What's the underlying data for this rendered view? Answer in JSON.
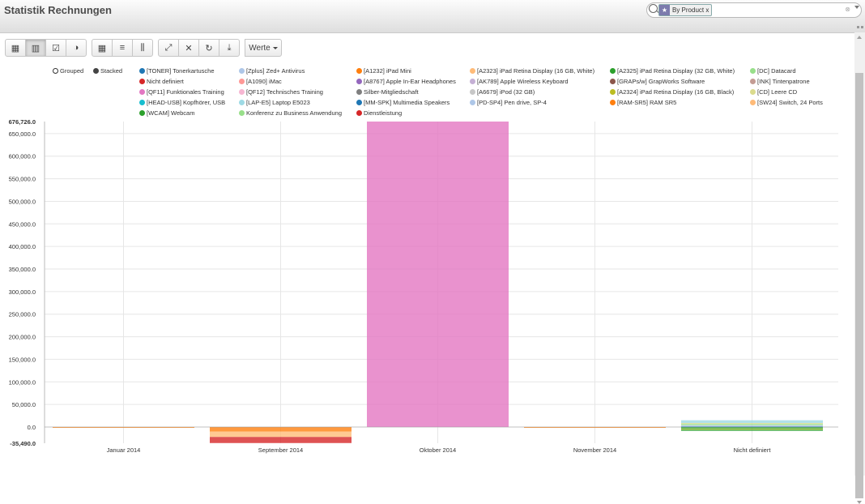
{
  "header": {
    "title": "Statistik Rechnungen"
  },
  "search": {
    "facet_label": "By Product",
    "facet_remove": "x",
    "clear": "⊗",
    "value": "",
    "placeholder": ""
  },
  "toolbar": {
    "groups": [
      [
        "table-icon",
        "bar-chart-icon",
        "checkbox-icon",
        "pie-chart-icon"
      ],
      [
        "grid-icon",
        "list-icon",
        "columns-icon"
      ],
      [
        "expand-icon",
        "collapse-icon",
        "refresh-icon",
        "download-icon"
      ]
    ],
    "glyphs": {
      "table-icon": "▦",
      "bar-chart-icon": "▥",
      "checkbox-icon": "☑",
      "pie-chart-icon": "◑",
      "grid-icon": "▦",
      "list-icon": "≡",
      "columns-icon": "⫼",
      "expand-icon": "⤢",
      "collapse-icon": "✕",
      "refresh-icon": "↻",
      "download-icon": "⤓"
    },
    "measures_label": "Werte"
  },
  "modes": [
    {
      "label": "Grouped",
      "selected": false
    },
    {
      "label": "Stacked",
      "selected": true
    }
  ],
  "chart_data": {
    "type": "bar",
    "stacked": true,
    "categories": [
      "Januar 2014",
      "September 2014",
      "Oktober 2014",
      "November 2014",
      "Nicht definiert"
    ],
    "ylim": [
      -35490,
      676726
    ],
    "y_ticks": [
      -35490,
      0,
      50000,
      100000,
      150000,
      200000,
      250000,
      300000,
      350000,
      400000,
      450000,
      500000,
      550000,
      600000,
      650000,
      676726
    ],
    "y_tick_labels": [
      "-35,490.0",
      "0.0",
      "50,000.0",
      "100,000.0",
      "150,000.0",
      "200,000.0",
      "250,000.0",
      "300,000.0",
      "350,000.0",
      "400,000.0",
      "450,000.0",
      "500,000.0",
      "550,000.0",
      "600,000.0",
      "650,000.0",
      "676,726.0"
    ],
    "series": [
      {
        "name": "[TONER] Tonerkartusche",
        "color": "#1f77b4",
        "values": [
          0,
          0,
          0,
          0,
          1500
        ]
      },
      {
        "name": "[Zplus] Zed+ Antivirus",
        "color": "#aec7e8",
        "values": [
          0,
          0,
          0,
          0,
          2500
        ]
      },
      {
        "name": "[A1232] iPad Mini",
        "color": "#ff7f0e",
        "values": [
          -1500,
          -10000,
          0,
          -1500,
          0
        ]
      },
      {
        "name": "[A2323] iPad Retina Display (16 GB, White)",
        "color": "#ffbb78",
        "values": [
          0,
          -12000,
          0,
          0,
          0
        ]
      },
      {
        "name": "[A2325] iPad Retina Display (32 GB, White)",
        "color": "#2ca02c",
        "values": [
          0,
          0,
          0,
          0,
          -4000
        ]
      },
      {
        "name": "[DC] Datacard",
        "color": "#98df8a",
        "values": [
          0,
          0,
          0,
          0,
          3000
        ]
      },
      {
        "name": "Nicht definiert",
        "color": "#d62728",
        "values": [
          0,
          -13490,
          0,
          0,
          0
        ]
      },
      {
        "name": "[A1090] iMac",
        "color": "#ff9896",
        "values": [
          0,
          0,
          0,
          0,
          0
        ]
      },
      {
        "name": "[A8767] Apple In-Ear Headphones",
        "color": "#9467bd",
        "values": [
          0,
          0,
          0,
          0,
          0
        ]
      },
      {
        "name": "[AK789] Apple Wireless Keyboard",
        "color": "#c5b0d5",
        "values": [
          0,
          0,
          0,
          0,
          0
        ]
      },
      {
        "name": "[GRAPs/w] GrapWorks Software",
        "color": "#8c564b",
        "values": [
          0,
          0,
          0,
          0,
          0
        ]
      },
      {
        "name": "[INK] Tintenpatrone",
        "color": "#c49c94",
        "values": [
          0,
          0,
          0,
          0,
          0
        ]
      },
      {
        "name": "[QF11] Funktionales Training",
        "color": "#e377c2",
        "values": [
          0,
          0,
          676726,
          0,
          0
        ]
      },
      {
        "name": "[QF12] Technisches Training",
        "color": "#f7b6d2",
        "values": [
          0,
          0,
          0,
          0,
          0
        ]
      },
      {
        "name": "Silber-Mitgliedschaft",
        "color": "#7f7f7f",
        "values": [
          0,
          0,
          0,
          0,
          0
        ]
      },
      {
        "name": "[A6679] iPod (32 GB)",
        "color": "#c7c7c7",
        "values": [
          0,
          0,
          0,
          0,
          0
        ]
      },
      {
        "name": "[A2324] iPad Retina Display (16 GB, Black)",
        "color": "#bcbd22",
        "values": [
          0,
          0,
          0,
          0,
          -1500
        ]
      },
      {
        "name": "[CD] Leere CD",
        "color": "#dbdb8d",
        "values": [
          0,
          0,
          0,
          0,
          2000
        ]
      },
      {
        "name": "[HEAD-USB] Kopfhörer, USB",
        "color": "#17becf",
        "values": [
          0,
          0,
          0,
          0,
          0
        ]
      },
      {
        "name": "[LAP-E5] Laptop E5023",
        "color": "#9edae5",
        "values": [
          0,
          0,
          0,
          0,
          6000
        ]
      },
      {
        "name": "[MM-SPK] Multimedia Speakers",
        "color": "#1f77b4",
        "values": [
          0,
          0,
          0,
          0,
          0
        ]
      },
      {
        "name": "[PD-SP4] Pen drive, SP-4",
        "color": "#aec7e8",
        "values": [
          0,
          0,
          0,
          0,
          0
        ]
      },
      {
        "name": "[RAM-SR5] RAM SR5",
        "color": "#ff7f0e",
        "values": [
          0,
          0,
          0,
          0,
          0
        ]
      },
      {
        "name": "[SW24] Switch, 24 Ports",
        "color": "#ffbb78",
        "values": [
          0,
          0,
          0,
          0,
          0
        ]
      },
      {
        "name": "[WCAM] Webcam",
        "color": "#2ca02c",
        "values": [
          0,
          0,
          0,
          0,
          -3000
        ]
      },
      {
        "name": "Konferenz zu Business Anwendung",
        "color": "#98df8a",
        "values": [
          0,
          0,
          0,
          0,
          0
        ]
      },
      {
        "name": "Dienstleistung",
        "color": "#d62728",
        "values": [
          0,
          0,
          0,
          0,
          0
        ]
      }
    ],
    "grid": true,
    "legend_position": "top"
  }
}
